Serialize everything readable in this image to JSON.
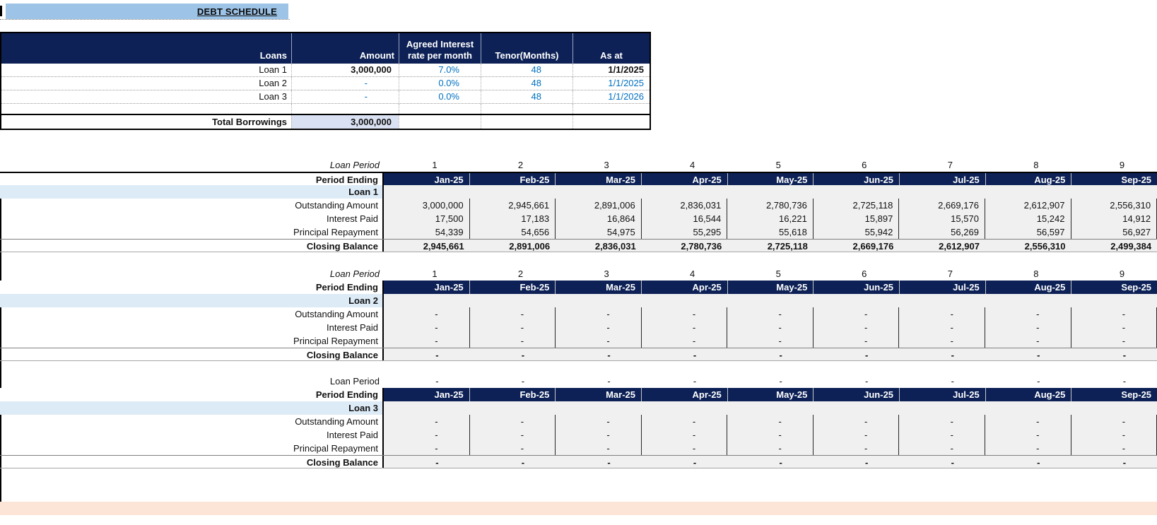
{
  "title": "DEBT SCHEDULE",
  "colors": {
    "navy": "#0d2156",
    "banner_blue": "#9dc3e6",
    "loan_row_blue": "#ddebf7",
    "total_cell_blue": "#d9e1f2",
    "footer_band_orange": "#fce4d6",
    "input_blue": "#0070c0",
    "data_gray": "#f0f0f0"
  },
  "loans_table": {
    "headers": [
      "Loans",
      "Amount",
      "Agreed Interest\nrate per month",
      "Tenor(Months)",
      "As at"
    ],
    "rows": [
      {
        "loan": "Loan 1",
        "amount": "3,000,000",
        "rate": "7.0%",
        "tenor": "48",
        "as_at": "1/1/2025",
        "amount_blue": false,
        "date_blue": false
      },
      {
        "loan": "Loan 2",
        "amount": "-",
        "rate": "0.0%",
        "tenor": "48",
        "as_at": "1/1/2025",
        "amount_blue": true,
        "date_blue": true
      },
      {
        "loan": "Loan 3",
        "amount": "-",
        "rate": "0.0%",
        "tenor": "48",
        "as_at": "1/1/2026",
        "amount_blue": true,
        "date_blue": true
      }
    ],
    "total_label": "Total Borrowings",
    "total_amount": "3,000,000"
  },
  "schedules": [
    {
      "loan_name": "Loan 1",
      "loan_period_label": "Loan Period",
      "loan_period_italic": true,
      "periods": [
        "1",
        "2",
        "3",
        "4",
        "5",
        "6",
        "7",
        "8",
        "9"
      ],
      "period_ending_label": "Period Ending",
      "months": [
        "Jan-25",
        "Feb-25",
        "Mar-25",
        "Apr-25",
        "May-25",
        "Jun-25",
        "Jul-25",
        "Aug-25",
        "Sep-25"
      ],
      "rows": [
        {
          "label": "Outstanding Amount",
          "values": [
            "3,000,000",
            "2,945,661",
            "2,891,006",
            "2,836,031",
            "2,780,736",
            "2,725,118",
            "2,669,176",
            "2,612,907",
            "2,556,310"
          ]
        },
        {
          "label": "Interest Paid",
          "values": [
            "17,500",
            "17,183",
            "16,864",
            "16,544",
            "16,221",
            "15,897",
            "15,570",
            "15,242",
            "14,912"
          ]
        },
        {
          "label": "Principal Repayment",
          "values": [
            "54,339",
            "54,656",
            "54,975",
            "55,295",
            "55,618",
            "55,942",
            "56,269",
            "56,597",
            "56,927"
          ]
        }
      ],
      "closing": {
        "label": "Closing Balance",
        "values": [
          "2,945,661",
          "2,891,006",
          "2,836,031",
          "2,780,736",
          "2,725,118",
          "2,669,176",
          "2,612,907",
          "2,556,310",
          "2,499,384"
        ]
      }
    },
    {
      "loan_name": "Loan 2",
      "loan_period_label": "Loan Period",
      "loan_period_italic": true,
      "periods": [
        "1",
        "2",
        "3",
        "4",
        "5",
        "6",
        "7",
        "8",
        "9"
      ],
      "period_ending_label": "Period Ending",
      "months": [
        "Jan-25",
        "Feb-25",
        "Mar-25",
        "Apr-25",
        "May-25",
        "Jun-25",
        "Jul-25",
        "Aug-25",
        "Sep-25"
      ],
      "rows": [
        {
          "label": "Outstanding Amount",
          "values": [
            "-",
            "-",
            "-",
            "-",
            "-",
            "-",
            "-",
            "-",
            "-"
          ]
        },
        {
          "label": "Interest Paid",
          "values": [
            "-",
            "-",
            "-",
            "-",
            "-",
            "-",
            "-",
            "-",
            "-"
          ]
        },
        {
          "label": "Principal Repayment",
          "values": [
            "-",
            "-",
            "-",
            "-",
            "-",
            "-",
            "-",
            "-",
            "-"
          ]
        }
      ],
      "closing": {
        "label": "Closing Balance",
        "values": [
          "-",
          "-",
          "-",
          "-",
          "-",
          "-",
          "-",
          "-",
          "-"
        ]
      }
    },
    {
      "loan_name": "Loan 3",
      "loan_period_label": "Loan Period",
      "loan_period_italic": false,
      "periods": [
        "-",
        "-",
        "-",
        "-",
        "-",
        "-",
        "-",
        "-",
        "-"
      ],
      "period_ending_label": "Period Ending",
      "months": [
        "Jan-25",
        "Feb-25",
        "Mar-25",
        "Apr-25",
        "May-25",
        "Jun-25",
        "Jul-25",
        "Aug-25",
        "Sep-25"
      ],
      "rows": [
        {
          "label": "Outstanding Amount",
          "values": [
            "-",
            "-",
            "-",
            "-",
            "-",
            "-",
            "-",
            "-",
            "-"
          ]
        },
        {
          "label": "Interest Paid",
          "values": [
            "-",
            "-",
            "-",
            "-",
            "-",
            "-",
            "-",
            "-",
            "-"
          ]
        },
        {
          "label": "Principal Repayment",
          "values": [
            "-",
            "-",
            "-",
            "-",
            "-",
            "-",
            "-",
            "-",
            "-"
          ]
        }
      ],
      "closing": {
        "label": "Closing Balance",
        "values": [
          "-",
          "-",
          "-",
          "-",
          "-",
          "-",
          "-",
          "-",
          "-"
        ]
      }
    }
  ]
}
